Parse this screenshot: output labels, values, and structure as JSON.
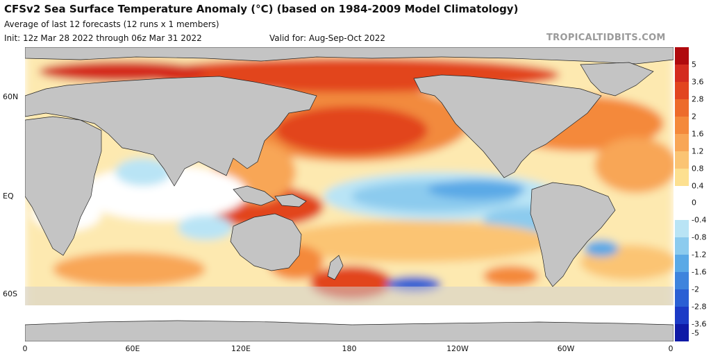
{
  "header": {
    "title": "CFSv2 Sea Surface Temperature Anomaly (°C) (based on 1984-2009 Model Climatology)",
    "subtitle": "Average of last 12 forecasts (12 runs x 1 members)",
    "init": "Init: 12z Mar 28 2022 through 06z Mar 31 2022",
    "valid": "Valid for: Aug-Sep-Oct 2022",
    "watermark": "TROPICALTIDBITS.COM"
  },
  "axes": {
    "lat_labels": [
      "60N",
      "EQ",
      "60S"
    ],
    "lon_labels": [
      "0",
      "60E",
      "120E",
      "180",
      "120W",
      "60W",
      "0"
    ]
  },
  "colorbar": {
    "labels": [
      "5",
      "3.6",
      "2.8",
      "2",
      "1.6",
      "1.2",
      "0.8",
      "0.4",
      "0",
      "-0.4",
      "-0.8",
      "-1.2",
      "-1.6",
      "-2",
      "-2.8",
      "-3.6",
      "-5"
    ],
    "colors": [
      "#b00a0e",
      "#d42b1f",
      "#e2451f",
      "#ed6b2b",
      "#f4893b",
      "#f8a656",
      "#fbc473",
      "#fde090",
      "#ffffff",
      "#ffffff",
      "#b9e4f5",
      "#8ccbee",
      "#5aa9e6",
      "#3e84dd",
      "#2a5fd4",
      "#1c3bc6",
      "#0f1aa6"
    ]
  },
  "map": {
    "land_color": "#c4c4c4",
    "border_color": "#222222"
  }
}
